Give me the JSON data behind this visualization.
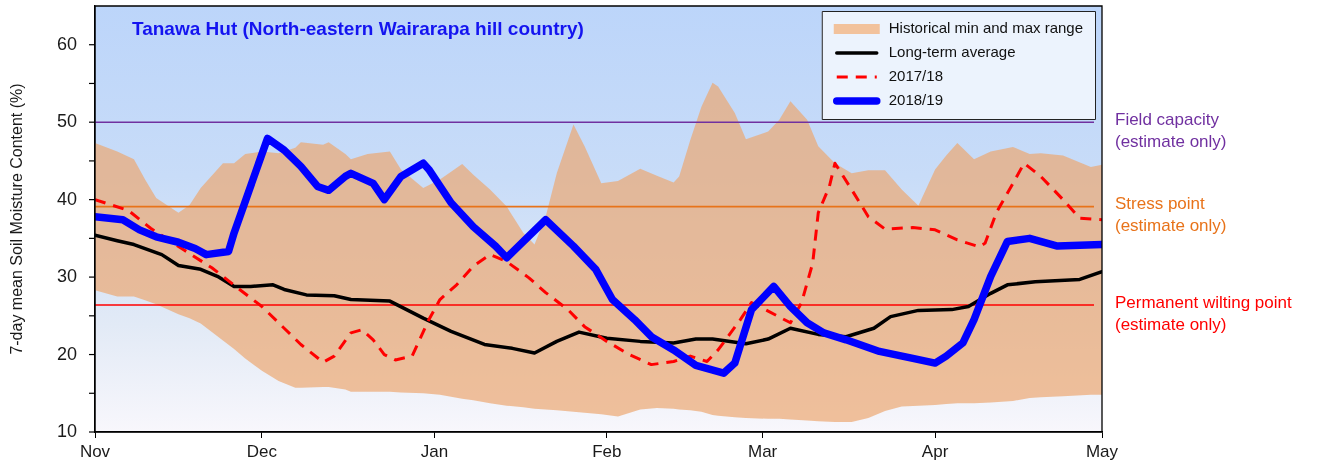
{
  "chart_data": {
    "type": "line",
    "title": "Tanawa Hut (North-eastern Wairarapa hill country)",
    "ylabel": "7-day mean Soil Moisture Content (%)",
    "xlim": [
      "2018-11-01",
      "2019-05-01"
    ],
    "xticks": [
      {
        "value": "2018-11-01",
        "label": "Nov"
      },
      {
        "value": "2018-12-01",
        "label": "Dec"
      },
      {
        "value": "2019-01-01",
        "label": "Jan"
      },
      {
        "value": "2019-02-01",
        "label": "Feb"
      },
      {
        "value": "2019-03-01",
        "label": "Mar"
      },
      {
        "value": "2019-04-01",
        "label": "Apr"
      },
      {
        "value": "2019-05-01",
        "label": "May"
      }
    ],
    "ylim": [
      10,
      65
    ],
    "yticks": [
      10,
      {
        "value": 15,
        "label": null
      },
      20,
      {
        "value": 25,
        "label": null
      },
      30,
      {
        "value": 35,
        "label": null
      },
      40,
      {
        "value": 45,
        "label": null
      },
      50,
      {
        "value": 55,
        "label": null
      },
      60
    ],
    "grid": false,
    "legend": "top right",
    "marker": "none",
    "line_style": "solid",
    "ref_lines": [
      {
        "axis": "y",
        "value": 50,
        "label": "Field capacity\n(estimate only)",
        "color": "#7030a0"
      },
      {
        "axis": "y",
        "value": 39.1,
        "label": "Stress point\n(estimate only)",
        "color": "#e8731a"
      },
      {
        "axis": "y",
        "value": 26.4,
        "label": "Permanent wilting point\n(estimate only)",
        "color": "#ff0000"
      }
    ],
    "series": [
      {
        "name": "Historical min and max range",
        "type": "area",
        "color": "#f2c29c",
        "x": [
          "2018-11-01",
          "2018-11-05",
          "2018-11-08",
          "2018-11-10",
          "2018-11-12",
          "2018-11-16",
          "2018-11-18",
          "2018-11-20",
          "2018-11-24",
          "2018-11-26",
          "2018-11-28",
          "2018-12-01",
          "2018-12-04",
          "2018-12-07",
          "2018-12-08",
          "2018-12-12",
          "2018-12-13",
          "2018-12-16",
          "2018-12-17",
          "2018-12-20",
          "2018-12-24",
          "2018-12-26",
          "2018-12-30",
          "2019-01-02",
          "2019-01-06",
          "2019-01-08",
          "2019-01-11",
          "2019-01-14",
          "2019-01-17",
          "2019-01-19",
          "2019-01-21",
          "2019-01-23",
          "2019-01-26",
          "2019-01-28",
          "2019-01-31",
          "2019-02-03",
          "2019-02-07",
          "2019-02-10",
          "2019-02-13",
          "2019-02-14",
          "2019-02-16",
          "2019-02-18",
          "2019-02-20",
          "2019-02-21",
          "2019-02-24",
          "2019-02-26",
          "2019-03-02",
          "2019-03-04",
          "2019-03-06",
          "2019-03-09",
          "2019-03-11",
          "2019-03-14",
          "2019-03-17",
          "2019-03-20",
          "2019-03-23",
          "2019-03-26",
          "2019-03-29",
          "2019-04-01",
          "2019-04-03",
          "2019-04-05",
          "2019-04-08",
          "2019-04-11",
          "2019-04-15",
          "2019-04-18",
          "2019-04-20",
          "2019-04-24",
          "2019-04-29",
          "2019-05-01"
        ],
        "values": [
          null,
          null,
          null,
          null,
          null,
          null,
          null,
          null,
          null,
          null,
          null,
          null,
          null,
          null,
          null,
          null,
          null,
          null,
          null,
          null,
          null,
          null,
          null,
          null,
          null,
          null,
          null,
          null,
          null,
          null,
          null,
          null,
          null,
          null,
          null,
          null,
          null,
          null,
          null,
          null,
          null,
          null,
          null,
          null,
          null,
          null,
          null,
          null,
          null,
          null,
          null,
          null,
          null,
          null,
          null,
          null,
          null,
          null,
          null,
          null,
          null,
          null,
          null,
          null,
          null,
          null,
          null,
          null
        ],
        "lower": [
          28.3,
          27.5,
          27.5,
          27.0,
          26.5,
          25.2,
          24.7,
          24.0,
          21.8,
          20.7,
          19.5,
          17.9,
          16.6,
          15.7,
          15.7,
          15.8,
          15.8,
          15.5,
          15.2,
          15.2,
          15.2,
          15.1,
          15.0,
          14.8,
          14.3,
          14.1,
          13.7,
          13.4,
          13.2,
          13.0,
          12.9,
          12.8,
          12.6,
          12.5,
          12.3,
          12.0,
          12.9,
          13.1,
          13.0,
          12.9,
          12.8,
          12.6,
          12.2,
          12.1,
          11.9,
          11.8,
          11.7,
          11.7,
          11.6,
          11.5,
          11.4,
          11.3,
          11.3,
          11.8,
          12.7,
          13.3,
          13.4,
          13.5,
          13.6,
          13.7,
          13.7,
          13.8,
          14.0,
          14.4,
          14.5,
          14.6,
          14.8,
          14.8
        ],
        "upper": [
          47.3,
          46.2,
          45.2,
          42.6,
          40.2,
          38.3,
          39.3,
          41.5,
          44.7,
          44.7,
          45.9,
          46.2,
          46.0,
          46.7,
          47.4,
          47.1,
          47.4,
          45.9,
          45.2,
          45.9,
          46.2,
          43.9,
          41.5,
          42.6,
          44.6,
          43.2,
          41.3,
          39.1,
          35.7,
          34.2,
          37.8,
          43.4,
          49.7,
          46.9,
          42.1,
          42.4,
          44.0,
          43.1,
          42.2,
          43.0,
          47.7,
          52.0,
          55.1,
          54.6,
          51.2,
          47.8,
          48.8,
          50.3,
          52.7,
          50.3,
          46.9,
          44.7,
          43.4,
          43.8,
          43.8,
          41.3,
          39.2,
          43.9,
          45.7,
          47.3,
          45.2,
          46.2,
          46.8,
          45.9,
          46.0,
          45.7,
          44.2,
          44.5
        ]
      },
      {
        "name": "Long-term average",
        "color": "#000000",
        "x": [
          "2018-11-01",
          "2018-11-05",
          "2018-11-08",
          "2018-11-13",
          "2018-11-16",
          "2018-11-20",
          "2018-11-23",
          "2018-11-26",
          "2018-11-29",
          "2018-12-03",
          "2018-12-05",
          "2018-12-09",
          "2018-12-14",
          "2018-12-17",
          "2018-12-24",
          "2018-12-30",
          "2019-01-04",
          "2019-01-10",
          "2019-01-15",
          "2019-01-19",
          "2019-01-23",
          "2019-01-27",
          "2019-02-01",
          "2019-02-07",
          "2019-02-13",
          "2019-02-17",
          "2019-02-20",
          "2019-02-26",
          "2019-03-02",
          "2019-03-06",
          "2019-03-11",
          "2019-03-16",
          "2019-03-21",
          "2019-03-24",
          "2019-03-29",
          "2019-04-04",
          "2019-04-07",
          "2019-04-11",
          "2019-04-14",
          "2019-04-19",
          "2019-04-27",
          "2019-05-01"
        ],
        "values": [
          35.4,
          34.7,
          34.2,
          32.9,
          31.5,
          31.0,
          30.1,
          28.8,
          28.8,
          29.0,
          28.4,
          27.7,
          27.6,
          27.1,
          26.9,
          24.7,
          23.0,
          21.3,
          20.8,
          20.2,
          21.7,
          22.9,
          22.1,
          21.7,
          21.5,
          22.0,
          22.0,
          21.4,
          22.0,
          23.4,
          22.6,
          22.3,
          23.4,
          24.9,
          25.7,
          25.8,
          26.2,
          27.9,
          29.0,
          29.4,
          29.7,
          30.7
        ]
      },
      {
        "name": "2017/18",
        "color": "#ff0000",
        "line_style": "dashed",
        "x": [
          "2018-11-01",
          "2018-11-07",
          "2018-11-11",
          "2018-11-17",
          "2018-11-22",
          "2018-11-27",
          "2018-12-01",
          "2018-12-05",
          "2018-12-08",
          "2018-12-12",
          "2018-12-14",
          "2018-12-17",
          "2018-12-19",
          "2018-12-21",
          "2018-12-23",
          "2018-12-25",
          "2018-12-28",
          "2018-12-31",
          "2019-01-02",
          "2019-01-05",
          "2019-01-08",
          "2019-01-11",
          "2019-01-14",
          "2019-01-18",
          "2019-01-21",
          "2019-01-25",
          "2019-01-28",
          "2019-02-01",
          "2019-02-05",
          "2019-02-09",
          "2019-02-13",
          "2019-02-16",
          "2019-02-19",
          "2019-02-21",
          "2019-02-25",
          "2019-02-27",
          "2019-03-02",
          "2019-03-06",
          "2019-03-08",
          "2019-03-10",
          "2019-03-11",
          "2019-03-13",
          "2019-03-14",
          "2019-03-17",
          "2019-03-20",
          "2019-03-23",
          "2019-03-28",
          "2019-04-01",
          "2019-04-05",
          "2019-04-09",
          "2019-04-10",
          "2019-04-12",
          "2019-04-15",
          "2019-04-17",
          "2019-04-20",
          "2019-04-24",
          "2019-04-27",
          "2019-05-01"
        ],
        "values": [
          40.0,
          38.6,
          36.3,
          33.5,
          31.2,
          28.4,
          26.2,
          23.4,
          21.3,
          19.0,
          19.8,
          22.8,
          23.2,
          21.9,
          20.0,
          19.3,
          19.8,
          24.5,
          27.1,
          29.0,
          31.4,
          32.9,
          32.0,
          29.9,
          28.0,
          25.8,
          23.6,
          21.7,
          20.0,
          18.7,
          19.1,
          19.8,
          19.1,
          20.6,
          24.5,
          26.7,
          25.6,
          24.1,
          26.7,
          31.8,
          38.3,
          41.7,
          44.7,
          41.3,
          37.8,
          36.2,
          36.4,
          36.1,
          34.8,
          33.9,
          34.4,
          38.3,
          42.1,
          44.7,
          43.0,
          40.0,
          37.6,
          37.4
        ]
      },
      {
        "name": "2018/19",
        "color": "#0000ff",
        "x": [
          "2018-11-01",
          "2018-11-06",
          "2018-11-09",
          "2018-11-12",
          "2018-11-16",
          "2018-11-19",
          "2018-11-21",
          "2018-11-25",
          "2018-11-26",
          "2018-12-02",
          "2018-12-05",
          "2018-12-08",
          "2018-12-11",
          "2018-12-13",
          "2018-12-16",
          "2018-12-17",
          "2018-12-21",
          "2018-12-23",
          "2018-12-26",
          "2018-12-30",
          "2018-12-31",
          "2019-01-04",
          "2019-01-08",
          "2019-01-12",
          "2019-01-14",
          "2019-01-18",
          "2019-01-21",
          "2019-01-26",
          "2019-01-30",
          "2019-02-02",
          "2019-02-06",
          "2019-02-09",
          "2019-02-13",
          "2019-02-17",
          "2019-02-22",
          "2019-02-24",
          "2019-02-27",
          "2019-03-03",
          "2019-03-06",
          "2019-03-09",
          "2019-03-12",
          "2019-03-16",
          "2019-03-22",
          "2019-03-28",
          "2019-04-01",
          "2019-04-03",
          "2019-04-06",
          "2019-04-08",
          "2019-04-11",
          "2019-04-14",
          "2019-04-18",
          "2019-04-23",
          "2019-04-27",
          "2019-05-01"
        ],
        "values": [
          37.8,
          37.4,
          36.1,
          35.2,
          34.5,
          33.7,
          32.9,
          33.3,
          35.7,
          47.9,
          46.4,
          44.3,
          41.7,
          41.2,
          43.0,
          43.4,
          42.1,
          40.0,
          43.0,
          44.7,
          43.9,
          39.6,
          36.5,
          34.0,
          32.5,
          35.3,
          37.4,
          34.0,
          31.0,
          27.1,
          24.5,
          22.3,
          20.6,
          18.6,
          17.6,
          18.9,
          25.8,
          28.8,
          26.2,
          24.1,
          22.8,
          21.9,
          20.4,
          19.5,
          18.9,
          19.8,
          21.5,
          24.5,
          30.1,
          34.6,
          35.0,
          34.0,
          34.1,
          34.2
        ]
      }
    ]
  }
}
